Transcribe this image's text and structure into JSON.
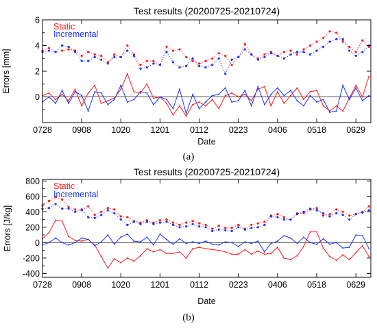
{
  "panel_labels": [
    "(a)",
    "(b)"
  ],
  "colors": {
    "static": "#ff1a1a",
    "incremental": "#1a33ff",
    "axis": "#000000",
    "zero_line": "#000000"
  },
  "chart_data": [
    {
      "type": "line",
      "title": "Test results (20200725-20210724)",
      "xlabel": "Date",
      "ylabel": "Errors [mm]",
      "x_tick_labels": [
        "0728",
        "0908",
        "1020",
        "1201",
        "0112",
        "0223",
        "0406",
        "0518",
        "0629"
      ],
      "x_range_days": [
        0,
        352
      ],
      "ylim": [
        -2.0,
        6.0
      ],
      "y_ticks": [
        -2,
        0,
        2,
        4,
        6
      ],
      "y_tick_labels": [
        "",
        "0",
        "2",
        "4",
        "6"
      ],
      "zero_line": true,
      "legend": "top-left",
      "series": [
        {
          "name": "Static",
          "kind": "line",
          "color_key": "static",
          "x": [
            0,
            7,
            14,
            21,
            28,
            35,
            42,
            49,
            56,
            63,
            70,
            77,
            84,
            91,
            98,
            105,
            112,
            119,
            126,
            133,
            140,
            147,
            154,
            161,
            168,
            175,
            182,
            189,
            196,
            203,
            210,
            217,
            224,
            231,
            238,
            245,
            252,
            259,
            266,
            273,
            280,
            287,
            294,
            301,
            308,
            315,
            322,
            329,
            336,
            343,
            350
          ],
          "values": [
            0.1,
            0.3,
            -0.2,
            0.2,
            -0.3,
            0.6,
            -0.7,
            0.3,
            0.9,
            -0.5,
            -0.3,
            -0.1,
            0.6,
            1.8,
            0.4,
            0.3,
            1.0,
            -0.1,
            0.0,
            -0.5,
            -1.4,
            -0.7,
            -1.5,
            -0.6,
            -0.4,
            -0.7,
            -0.2,
            -0.9,
            0.1,
            0.3,
            0.0,
            0.2,
            -0.3,
            0.6,
            0.8,
            -0.7,
            0.4,
            -0.5,
            0.1,
            0.7,
            -0.2,
            0.4,
            0.5,
            -0.7,
            -1.1,
            -0.7,
            -1.1,
            -0.1,
            0.9,
            0.0,
            1.6
          ]
        },
        {
          "name": "Incremental",
          "kind": "line",
          "color_key": "incremental",
          "x": [
            0,
            7,
            14,
            21,
            28,
            35,
            42,
            49,
            56,
            63,
            70,
            77,
            84,
            91,
            98,
            105,
            112,
            119,
            126,
            133,
            140,
            147,
            154,
            161,
            168,
            175,
            182,
            189,
            196,
            203,
            210,
            217,
            224,
            231,
            238,
            245,
            252,
            259,
            266,
            273,
            280,
            287,
            294,
            301,
            308,
            315,
            322,
            329,
            336,
            343,
            350
          ],
          "values": [
            -0.4,
            0.0,
            -0.5,
            0.5,
            -0.5,
            0.4,
            0.1,
            -1.1,
            0.4,
            0.3,
            -0.6,
            -0.2,
            0.9,
            -0.4,
            -0.2,
            0.4,
            0.3,
            -0.6,
            0.0,
            -0.2,
            -0.9,
            0.6,
            -1.3,
            0.2,
            -0.9,
            -0.4,
            0.1,
            0.2,
            0.7,
            -0.4,
            -0.3,
            0.5,
            -0.7,
            0.8,
            -0.6,
            0.2,
            0.7,
            0.1,
            0.5,
            -0.3,
            -0.7,
            0.1,
            -0.4,
            -0.2,
            -1.2,
            -1.1,
            0.9,
            -0.2,
            0.7,
            -0.3,
            0.1
          ]
        },
        {
          "name": "Static",
          "kind": "dotted",
          "color_key": "static",
          "x": [
            0,
            7,
            14,
            21,
            28,
            35,
            42,
            49,
            56,
            63,
            70,
            77,
            84,
            91,
            98,
            105,
            112,
            119,
            126,
            133,
            140,
            147,
            154,
            161,
            168,
            175,
            182,
            189,
            196,
            203,
            210,
            217,
            224,
            231,
            238,
            245,
            252,
            259,
            266,
            273,
            280,
            287,
            294,
            301,
            308,
            315,
            322,
            329,
            336,
            343,
            350
          ],
          "values": [
            3.6,
            3.8,
            3.5,
            3.6,
            3.7,
            3.6,
            3.2,
            3.5,
            3.3,
            3.2,
            2.7,
            3.3,
            3.1,
            4.0,
            3.3,
            2.5,
            2.8,
            2.8,
            2.5,
            3.9,
            3.6,
            3.7,
            3.1,
            2.8,
            2.6,
            2.8,
            3.0,
            3.4,
            3.2,
            2.5,
            3.1,
            4.1,
            3.3,
            3.0,
            3.3,
            3.5,
            3.2,
            3.5,
            3.6,
            3.3,
            3.7,
            4.0,
            4.3,
            4.6,
            5.1,
            5.0,
            4.3,
            3.9,
            3.5,
            4.4,
            3.9
          ]
        },
        {
          "name": "Incremental",
          "kind": "dotted",
          "color_key": "incremental",
          "x": [
            0,
            7,
            14,
            21,
            28,
            35,
            42,
            49,
            56,
            63,
            70,
            77,
            84,
            91,
            98,
            105,
            112,
            119,
            126,
            133,
            140,
            147,
            154,
            161,
            168,
            175,
            182,
            189,
            196,
            203,
            210,
            217,
            224,
            231,
            238,
            245,
            252,
            259,
            266,
            273,
            280,
            287,
            294,
            301,
            308,
            315,
            322,
            329,
            336,
            343,
            350
          ],
          "values": [
            3.5,
            3.6,
            3.5,
            4.0,
            3.9,
            3.5,
            2.8,
            2.8,
            3.1,
            2.9,
            2.6,
            3.1,
            3.1,
            3.6,
            3.2,
            2.2,
            2.3,
            2.6,
            2.5,
            3.5,
            2.7,
            2.3,
            2.4,
            3.0,
            2.4,
            2.3,
            2.5,
            3.0,
            1.8,
            2.9,
            3.1,
            3.7,
            3.3,
            2.9,
            3.1,
            3.4,
            3.2,
            3.0,
            3.3,
            3.5,
            3.5,
            3.3,
            3.6,
            3.9,
            4.3,
            4.5,
            4.5,
            3.6,
            3.2,
            3.5,
            4.0
          ]
        }
      ]
    },
    {
      "type": "line",
      "title": "Test results (20200725-20210724)",
      "xlabel": "Date",
      "ylabel": "Errors [J/kg]",
      "x_tick_labels": [
        "0728",
        "0908",
        "1020",
        "1201",
        "0112",
        "0223",
        "0406",
        "0518",
        "0629"
      ],
      "x_range_days": [
        0,
        352
      ],
      "ylim": [
        -450,
        820
      ],
      "y_ticks": [
        -400,
        -200,
        0,
        200,
        400,
        600,
        800
      ],
      "y_tick_labels": [
        "-400",
        "-200",
        "0",
        "200",
        "400",
        "600",
        "800"
      ],
      "zero_line": true,
      "legend": "top-left",
      "series": [
        {
          "name": "Static",
          "kind": "line",
          "color_key": "static",
          "x": [
            0,
            7,
            14,
            21,
            28,
            35,
            42,
            49,
            56,
            63,
            70,
            77,
            84,
            91,
            98,
            105,
            112,
            119,
            126,
            133,
            140,
            147,
            154,
            161,
            168,
            175,
            182,
            189,
            196,
            203,
            210,
            217,
            224,
            231,
            238,
            245,
            252,
            259,
            266,
            273,
            280,
            287,
            294,
            301,
            308,
            315,
            322,
            329,
            336,
            343,
            350
          ],
          "values": [
            50,
            130,
            290,
            280,
            80,
            30,
            20,
            40,
            -30,
            -180,
            -330,
            -210,
            -260,
            -200,
            -240,
            -170,
            -80,
            -120,
            -90,
            -140,
            -140,
            -120,
            -200,
            -80,
            -60,
            -80,
            -90,
            -100,
            -120,
            -150,
            -150,
            -90,
            -150,
            -110,
            -150,
            -140,
            -60,
            -200,
            -220,
            -170,
            -50,
            140,
            140,
            -70,
            -180,
            -230,
            -160,
            -220,
            -130,
            -40,
            -180
          ]
        },
        {
          "name": "Incremental",
          "kind": "line",
          "color_key": "incremental",
          "x": [
            0,
            7,
            14,
            21,
            28,
            35,
            42,
            49,
            56,
            63,
            70,
            77,
            84,
            91,
            98,
            105,
            112,
            119,
            126,
            133,
            140,
            147,
            154,
            161,
            168,
            175,
            182,
            189,
            196,
            203,
            210,
            217,
            224,
            231,
            238,
            245,
            252,
            259,
            266,
            273,
            280,
            287,
            294,
            301,
            308,
            315,
            322,
            329,
            336,
            343,
            350
          ],
          "values": [
            -30,
            0,
            60,
            0,
            -30,
            0,
            60,
            40,
            -40,
            10,
            100,
            -20,
            70,
            110,
            20,
            10,
            70,
            -30,
            110,
            40,
            -20,
            50,
            -10,
            10,
            -10,
            20,
            -20,
            -30,
            10,
            0,
            -50,
            10,
            -10,
            20,
            -120,
            -10,
            20,
            90,
            60,
            -10,
            70,
            0,
            -20,
            50,
            -20,
            0,
            -70,
            -60,
            100,
            90,
            -80
          ]
        },
        {
          "name": "Static",
          "kind": "dotted",
          "color_key": "static",
          "x": [
            0,
            7,
            14,
            21,
            28,
            35,
            42,
            49,
            56,
            63,
            70,
            77,
            84,
            91,
            98,
            105,
            112,
            119,
            126,
            133,
            140,
            147,
            154,
            161,
            168,
            175,
            182,
            189,
            196,
            203,
            210,
            217,
            224,
            231,
            238,
            245,
            252,
            259,
            266,
            273,
            280,
            287,
            294,
            301,
            308,
            315,
            322,
            329,
            336,
            343,
            350
          ],
          "values": [
            480,
            540,
            590,
            560,
            460,
            430,
            420,
            470,
            360,
            400,
            450,
            430,
            340,
            330,
            280,
            260,
            290,
            260,
            290,
            300,
            260,
            230,
            260,
            280,
            250,
            230,
            180,
            220,
            190,
            190,
            230,
            180,
            230,
            250,
            270,
            350,
            370,
            330,
            300,
            380,
            380,
            430,
            450,
            350,
            370,
            430,
            400,
            350,
            370,
            400,
            470
          ]
        },
        {
          "name": "Incremental",
          "kind": "dotted",
          "color_key": "incremental",
          "x": [
            0,
            7,
            14,
            21,
            28,
            35,
            42,
            49,
            56,
            63,
            70,
            77,
            84,
            91,
            98,
            105,
            112,
            119,
            126,
            133,
            140,
            147,
            154,
            161,
            168,
            175,
            182,
            189,
            196,
            203,
            210,
            217,
            224,
            231,
            238,
            245,
            252,
            259,
            266,
            273,
            280,
            287,
            294,
            301,
            308,
            315,
            322,
            329,
            336,
            343,
            350
          ],
          "values": [
            440,
            450,
            500,
            440,
            440,
            400,
            430,
            330,
            320,
            360,
            420,
            380,
            300,
            230,
            270,
            240,
            270,
            240,
            260,
            270,
            230,
            200,
            210,
            240,
            210,
            200,
            150,
            170,
            160,
            150,
            200,
            170,
            190,
            200,
            230,
            340,
            330,
            300,
            300,
            370,
            400,
            440,
            420,
            380,
            340,
            380,
            360,
            300,
            370,
            390,
            420
          ]
        }
      ]
    }
  ]
}
